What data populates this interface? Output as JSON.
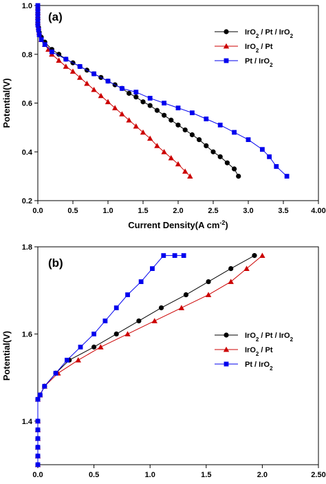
{
  "chart_data": [
    {
      "type": "line",
      "panel_label": "(a)",
      "xlabel": "Current Density(A cm⁻²)",
      "ylabel": "Potential(V)",
      "xlim": [
        0,
        4.0
      ],
      "ylim": [
        0.2,
        1.0
      ],
      "xticks": [
        0.0,
        0.5,
        1.0,
        1.5,
        2.0,
        2.5,
        3.0,
        3.5,
        4.0
      ],
      "xtick_labels": [
        "0.0",
        "0.5",
        "1.0",
        "1.5",
        "2.0",
        "2.5",
        "3.0",
        "3.5",
        "4.00"
      ],
      "yticks": [
        0.2,
        0.4,
        0.6,
        0.8,
        1.0
      ],
      "ytick_labels": [
        "0.2",
        "0.4",
        "0.6",
        "0.8",
        "1.0"
      ],
      "grid": false,
      "legend_position": "top-right",
      "series": [
        {
          "name": "IrO₂ / Pt / IrO₂",
          "color": "#000000",
          "marker": "circle",
          "x": [
            0.0,
            0.0,
            0.0,
            0.0,
            0.01,
            0.02,
            0.05,
            0.1,
            0.2,
            0.3,
            0.4,
            0.5,
            0.6,
            0.7,
            0.8,
            0.9,
            1.0,
            1.1,
            1.2,
            1.3,
            1.4,
            1.5,
            1.6,
            1.7,
            1.8,
            1.9,
            2.0,
            2.1,
            2.2,
            2.3,
            2.4,
            2.5,
            2.6,
            2.7,
            2.8,
            2.86
          ],
          "y": [
            0.99,
            0.97,
            0.95,
            0.93,
            0.91,
            0.89,
            0.87,
            0.85,
            0.82,
            0.8,
            0.78,
            0.765,
            0.75,
            0.735,
            0.72,
            0.705,
            0.69,
            0.675,
            0.66,
            0.64,
            0.625,
            0.605,
            0.59,
            0.57,
            0.55,
            0.53,
            0.51,
            0.49,
            0.47,
            0.45,
            0.425,
            0.4,
            0.38,
            0.355,
            0.33,
            0.3
          ]
        },
        {
          "name": "IrO₂ / Pt",
          "color": "#cc0000",
          "marker": "triangle",
          "x": [
            0.0,
            0.0,
            0.0,
            0.0,
            0.01,
            0.02,
            0.05,
            0.1,
            0.15,
            0.2,
            0.3,
            0.4,
            0.5,
            0.6,
            0.7,
            0.8,
            0.9,
            1.0,
            1.1,
            1.2,
            1.3,
            1.4,
            1.5,
            1.6,
            1.7,
            1.8,
            1.9,
            2.0,
            2.1,
            2.17
          ],
          "y": [
            0.99,
            0.97,
            0.95,
            0.93,
            0.91,
            0.89,
            0.86,
            0.84,
            0.82,
            0.8,
            0.775,
            0.75,
            0.73,
            0.705,
            0.68,
            0.655,
            0.63,
            0.605,
            0.58,
            0.555,
            0.53,
            0.505,
            0.48,
            0.455,
            0.425,
            0.4,
            0.375,
            0.35,
            0.32,
            0.3
          ]
        },
        {
          "name": "Pt / IrO₂",
          "color": "#0000ee",
          "marker": "square",
          "x": [
            0.0,
            0.0,
            0.0,
            0.0,
            0.0,
            0.01,
            0.02,
            0.05,
            0.1,
            0.2,
            0.4,
            0.6,
            0.8,
            1.0,
            1.2,
            1.4,
            1.6,
            1.8,
            2.0,
            2.2,
            2.4,
            2.6,
            2.8,
            3.0,
            3.2,
            3.3,
            3.4,
            3.55
          ],
          "y": [
            1.0,
            0.98,
            0.96,
            0.94,
            0.92,
            0.9,
            0.88,
            0.86,
            0.84,
            0.81,
            0.78,
            0.75,
            0.72,
            0.69,
            0.66,
            0.645,
            0.62,
            0.6,
            0.58,
            0.56,
            0.535,
            0.51,
            0.48,
            0.45,
            0.41,
            0.38,
            0.34,
            0.3
          ]
        }
      ]
    },
    {
      "type": "line",
      "panel_label": "(b)",
      "xlabel": "Current Density(A cm⁻²)",
      "ylabel": "Potential(V)",
      "xlim": [
        0,
        2.5
      ],
      "ylim": [
        1.3,
        1.8
      ],
      "xticks": [
        0.0,
        0.5,
        1.0,
        1.5,
        2.0,
        2.5
      ],
      "xtick_labels": [
        "0.0",
        "0.5",
        "1.0",
        "1.5",
        "2.0",
        "2.50"
      ],
      "yticks": [
        1.4,
        1.6,
        1.8
      ],
      "ytick_labels": [
        "1.4",
        "1.6",
        "1.8"
      ],
      "grid": false,
      "legend_position": "center-right",
      "series": [
        {
          "name": "IrO₂ / Pt / IrO₂",
          "color": "#000000",
          "marker": "circle",
          "x": [
            0.0,
            0.0,
            0.0,
            0.0,
            0.0,
            0.0,
            0.0,
            0.02,
            0.06,
            0.16,
            0.28,
            0.5,
            0.7,
            0.9,
            1.1,
            1.32,
            1.52,
            1.72,
            1.93
          ],
          "y": [
            1.3,
            1.32,
            1.34,
            1.36,
            1.38,
            1.4,
            1.45,
            1.46,
            1.48,
            1.51,
            1.54,
            1.57,
            1.6,
            1.63,
            1.66,
            1.69,
            1.72,
            1.75,
            1.78
          ]
        },
        {
          "name": "IrO₂ / Pt",
          "color": "#cc0000",
          "marker": "triangle",
          "x": [
            0.0,
            0.0,
            0.0,
            0.0,
            0.0,
            0.0,
            0.0,
            0.02,
            0.06,
            0.18,
            0.36,
            0.56,
            0.8,
            1.04,
            1.28,
            1.52,
            1.72,
            1.86,
            2.0
          ],
          "y": [
            1.3,
            1.32,
            1.34,
            1.36,
            1.38,
            1.4,
            1.45,
            1.46,
            1.48,
            1.51,
            1.54,
            1.57,
            1.6,
            1.63,
            1.66,
            1.69,
            1.72,
            1.75,
            1.78
          ]
        },
        {
          "name": "Pt / IrO₂",
          "color": "#0000ee",
          "marker": "square",
          "x": [
            0.0,
            0.0,
            0.0,
            0.0,
            0.0,
            0.0,
            0.0,
            0.02,
            0.06,
            0.16,
            0.26,
            0.38,
            0.5,
            0.6,
            0.7,
            0.8,
            0.92,
            1.02,
            1.12,
            1.22,
            1.3
          ],
          "y": [
            1.3,
            1.32,
            1.34,
            1.36,
            1.38,
            1.4,
            1.45,
            1.46,
            1.48,
            1.51,
            1.54,
            1.57,
            1.6,
            1.63,
            1.66,
            1.69,
            1.72,
            1.75,
            1.78,
            1.78,
            1.78
          ]
        }
      ]
    }
  ]
}
